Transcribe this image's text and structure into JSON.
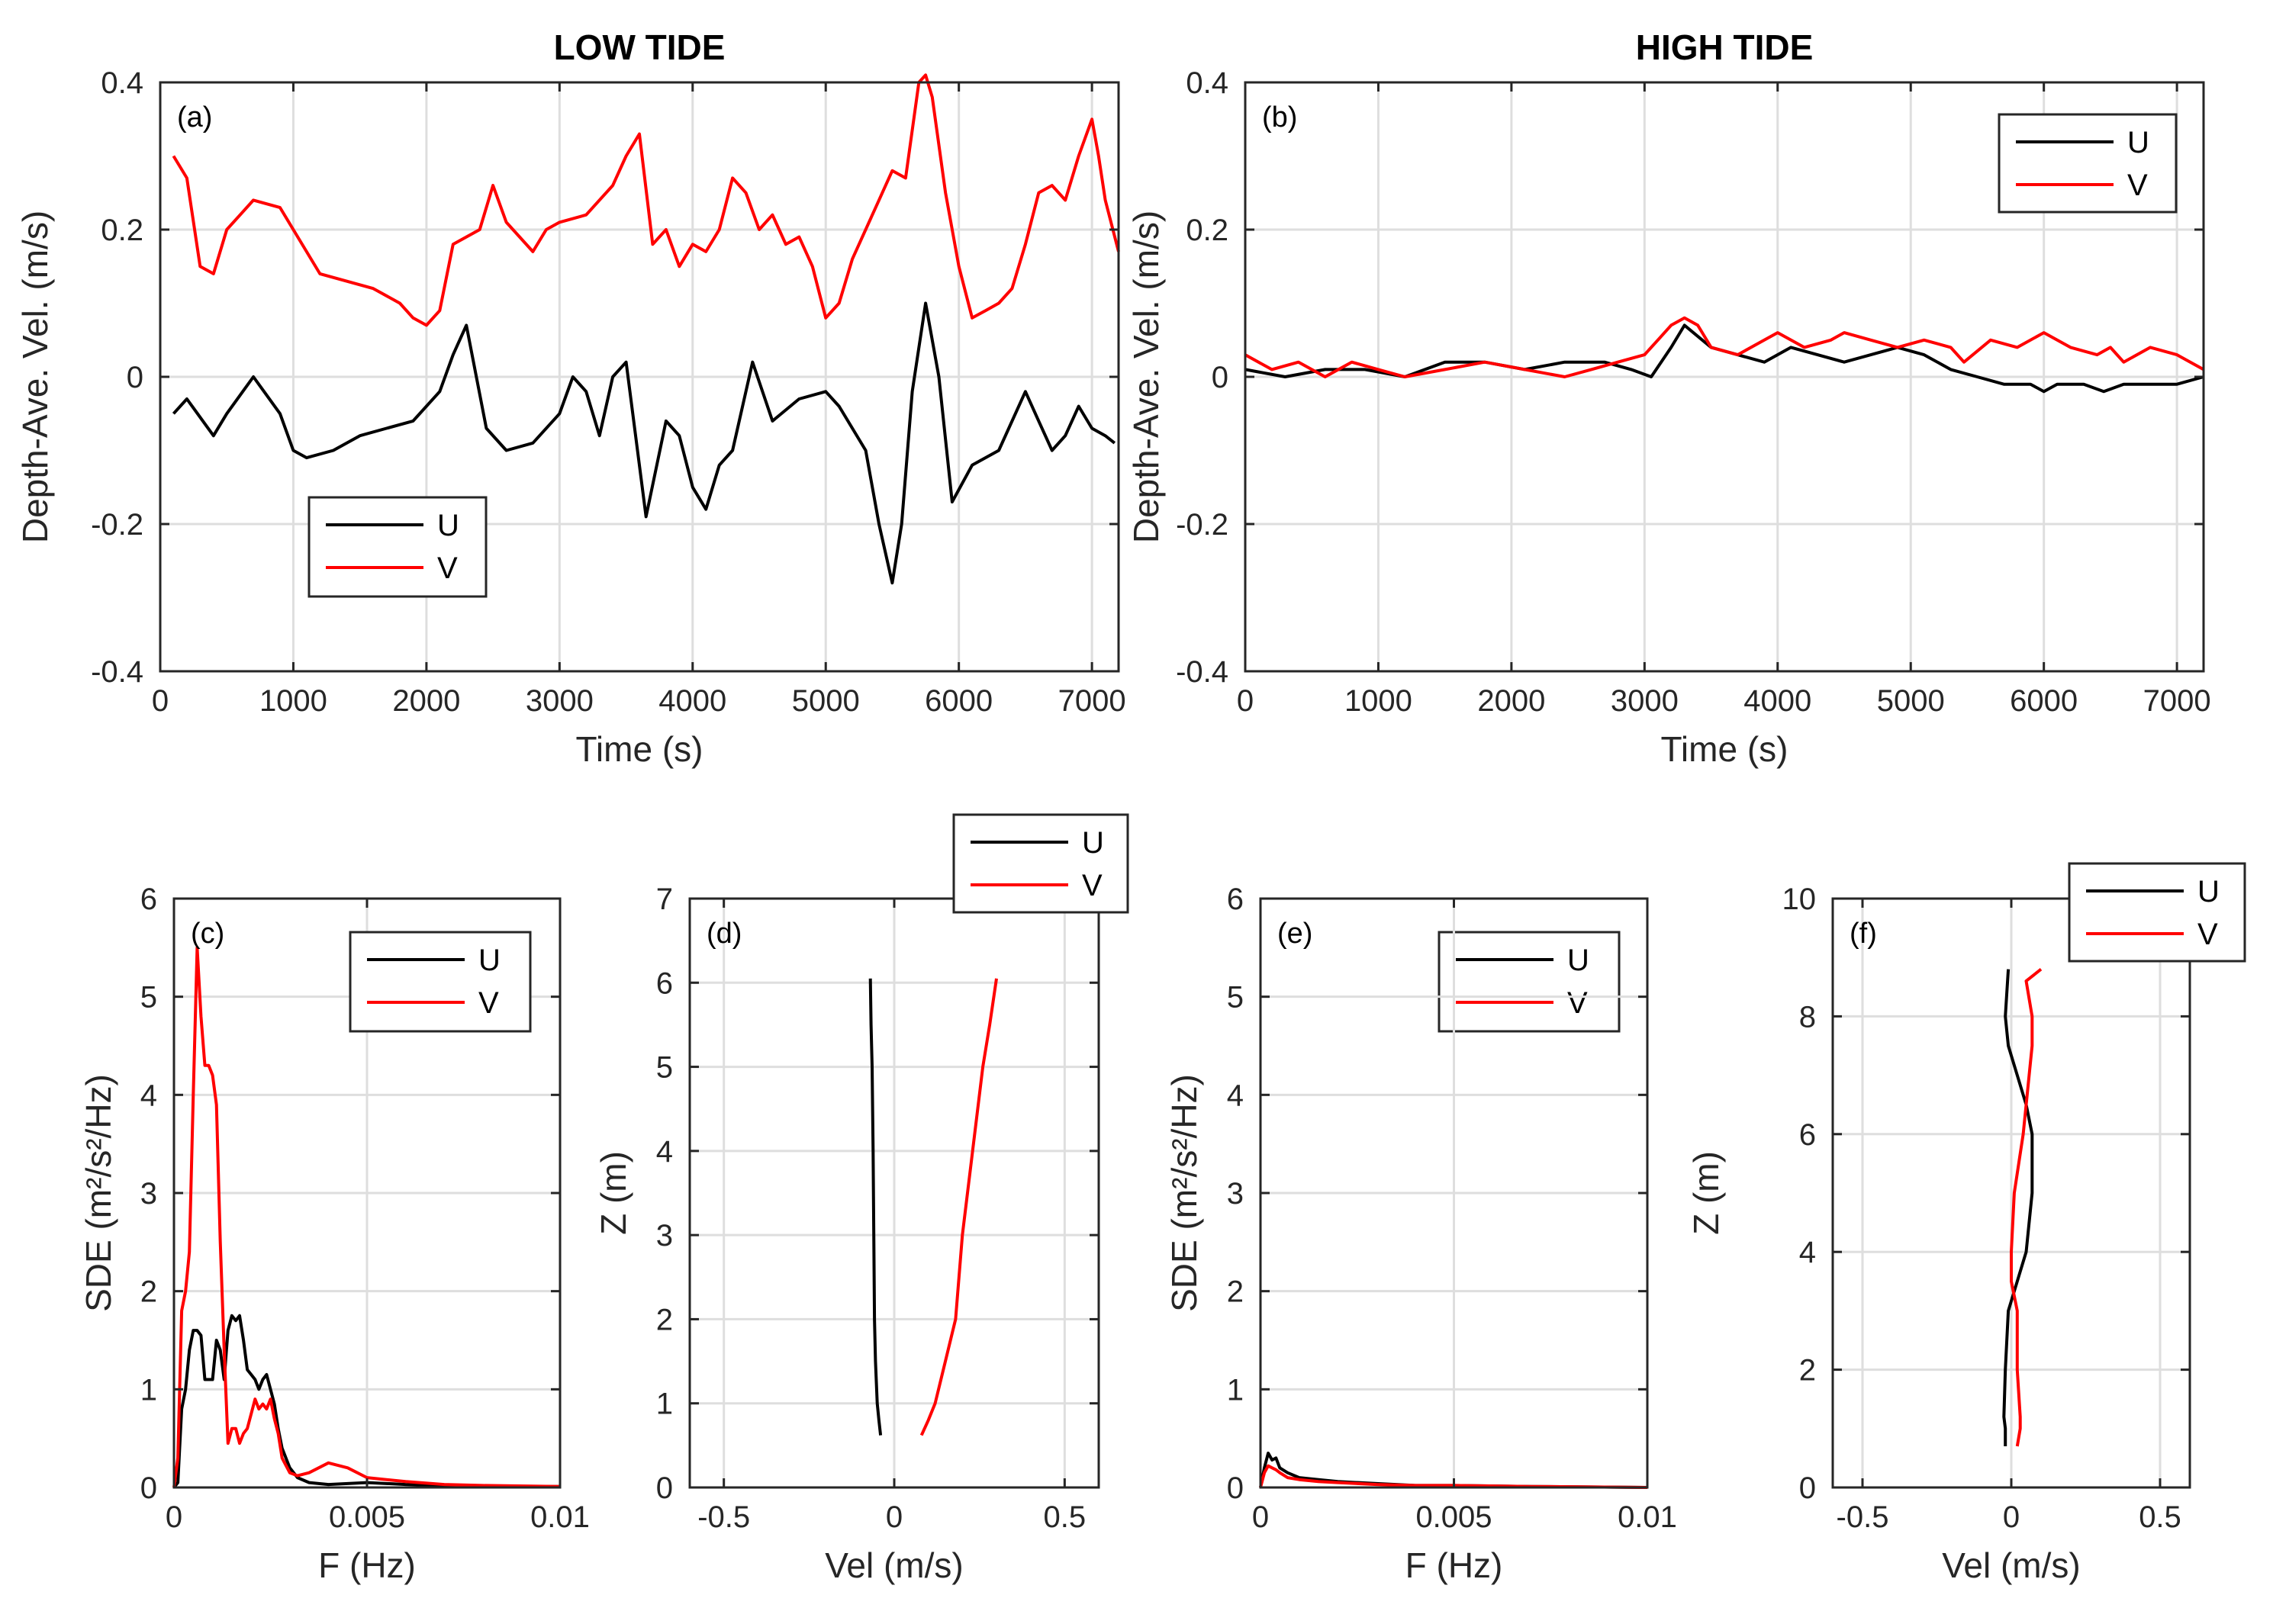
{
  "colors": {
    "U": "#000000",
    "V": "#ff0000",
    "grid": "#dedede",
    "axis": "#262626"
  },
  "chart_data": [
    {
      "type": "line",
      "panel_label": "(a)",
      "title": "LOW TIDE",
      "xlabel": "Time (s)",
      "ylabel": "Depth-Ave. Vel. (m/s)",
      "xlim": [
        0,
        7200
      ],
      "ylim": [
        -0.4,
        0.4
      ],
      "xticks": [
        0,
        1000,
        2000,
        3000,
        4000,
        5000,
        6000,
        7000
      ],
      "xticklabels": [
        "0",
        "1000",
        "2000",
        "3000",
        "4000",
        "5000",
        "6000",
        "7000"
      ],
      "yticks": [
        -0.4,
        -0.2,
        0,
        0.2,
        0.4
      ],
      "yticklabels": [
        "-0.4",
        "-0.2",
        "0",
        "0.2",
        "0.4"
      ],
      "legend": {
        "location": "lower-left",
        "entries": [
          "U",
          "V"
        ]
      },
      "series": [
        {
          "name": "U",
          "color": "#000000",
          "x": [
            100,
            200,
            400,
            500,
            700,
            900,
            1000,
            1100,
            1300,
            1500,
            1700,
            1900,
            2100,
            2200,
            2300,
            2450,
            2600,
            2800,
            3000,
            3100,
            3200,
            3300,
            3400,
            3500,
            3650,
            3800,
            3900,
            4000,
            4100,
            4200,
            4300,
            4450,
            4600,
            4800,
            5000,
            5100,
            5300,
            5400,
            5500,
            5570,
            5650,
            5750,
            5850,
            5950,
            6100,
            6300,
            6500,
            6600,
            6700,
            6800,
            6900,
            7000,
            7100,
            7170
          ],
          "y": [
            -0.05,
            -0.03,
            -0.08,
            -0.05,
            0.0,
            -0.05,
            -0.1,
            -0.11,
            -0.1,
            -0.08,
            -0.07,
            -0.06,
            -0.02,
            0.03,
            0.07,
            -0.07,
            -0.1,
            -0.09,
            -0.05,
            0.0,
            -0.02,
            -0.08,
            0.0,
            0.02,
            -0.19,
            -0.06,
            -0.08,
            -0.15,
            -0.18,
            -0.12,
            -0.1,
            0.02,
            -0.06,
            -0.03,
            -0.02,
            -0.04,
            -0.1,
            -0.2,
            -0.28,
            -0.2,
            -0.02,
            0.1,
            0.0,
            -0.17,
            -0.12,
            -0.1,
            -0.02,
            -0.06,
            -0.1,
            -0.08,
            -0.04,
            -0.07,
            -0.08,
            -0.09
          ]
        },
        {
          "name": "V",
          "color": "#ff0000",
          "x": [
            100,
            200,
            300,
            400,
            500,
            600,
            700,
            900,
            1000,
            1200,
            1400,
            1600,
            1800,
            1900,
            2000,
            2100,
            2200,
            2400,
            2500,
            2600,
            2700,
            2800,
            2900,
            3000,
            3200,
            3400,
            3500,
            3600,
            3700,
            3800,
            3900,
            4000,
            4100,
            4200,
            4300,
            4400,
            4500,
            4600,
            4700,
            4800,
            4900,
            5000,
            5100,
            5200,
            5400,
            5500,
            5600,
            5700,
            5750,
            5800,
            5900,
            6000,
            6100,
            6200,
            6300,
            6400,
            6500,
            6600,
            6700,
            6800,
            6900,
            7000,
            7050,
            7100,
            7200
          ],
          "y": [
            0.3,
            0.27,
            0.15,
            0.14,
            0.2,
            0.22,
            0.24,
            0.23,
            0.2,
            0.14,
            0.13,
            0.12,
            0.1,
            0.08,
            0.07,
            0.09,
            0.18,
            0.2,
            0.26,
            0.21,
            0.19,
            0.17,
            0.2,
            0.21,
            0.22,
            0.26,
            0.3,
            0.33,
            0.18,
            0.2,
            0.15,
            0.18,
            0.17,
            0.2,
            0.27,
            0.25,
            0.2,
            0.22,
            0.18,
            0.19,
            0.15,
            0.08,
            0.1,
            0.16,
            0.24,
            0.28,
            0.27,
            0.4,
            0.41,
            0.38,
            0.25,
            0.15,
            0.08,
            0.09,
            0.1,
            0.12,
            0.18,
            0.25,
            0.26,
            0.24,
            0.3,
            0.35,
            0.3,
            0.24,
            0.17
          ]
        }
      ]
    },
    {
      "type": "line",
      "panel_label": "(b)",
      "title": "HIGH TIDE",
      "xlabel": "Time (s)",
      "ylabel": "Depth-Ave. Vel. (m/s)",
      "xlim": [
        0,
        7200
      ],
      "ylim": [
        -0.4,
        0.4
      ],
      "xticks": [
        0,
        1000,
        2000,
        3000,
        4000,
        5000,
        6000,
        7000
      ],
      "xticklabels": [
        "0",
        "1000",
        "2000",
        "3000",
        "4000",
        "5000",
        "6000",
        "7000"
      ],
      "yticks": [
        -0.4,
        -0.2,
        0,
        0.2,
        0.4
      ],
      "yticklabels": [
        "-0.4",
        "-0.2",
        "0",
        "0.2",
        "0.4"
      ],
      "legend": {
        "location": "top-right",
        "entries": [
          "U",
          "V"
        ]
      },
      "series": [
        {
          "name": "U",
          "color": "#000000",
          "x": [
            0,
            300,
            600,
            900,
            1200,
            1500,
            1800,
            2100,
            2400,
            2700,
            2900,
            3050,
            3200,
            3300,
            3500,
            3700,
            3900,
            4100,
            4300,
            4500,
            4700,
            4900,
            5100,
            5300,
            5500,
            5700,
            5900,
            6000,
            6100,
            6300,
            6450,
            6600,
            6800,
            7000,
            7200
          ],
          "y": [
            0.01,
            0.0,
            0.01,
            0.01,
            0.0,
            0.02,
            0.02,
            0.01,
            0.02,
            0.02,
            0.01,
            0.0,
            0.04,
            0.07,
            0.04,
            0.03,
            0.02,
            0.04,
            0.03,
            0.02,
            0.03,
            0.04,
            0.03,
            0.01,
            0.0,
            -0.01,
            -0.01,
            -0.02,
            -0.01,
            -0.01,
            -0.02,
            -0.01,
            -0.01,
            -0.01,
            0.0
          ]
        },
        {
          "name": "V",
          "color": "#ff0000",
          "x": [
            0,
            200,
            400,
            600,
            800,
            1000,
            1200,
            1500,
            1800,
            2100,
            2400,
            2600,
            2800,
            3000,
            3100,
            3200,
            3300,
            3400,
            3500,
            3700,
            3900,
            4000,
            4200,
            4400,
            4500,
            4700,
            4900,
            5100,
            5300,
            5400,
            5600,
            5800,
            6000,
            6200,
            6400,
            6500,
            6600,
            6800,
            7000,
            7200
          ],
          "y": [
            0.03,
            0.01,
            0.02,
            0.0,
            0.02,
            0.01,
            0.0,
            0.01,
            0.02,
            0.01,
            0.0,
            0.01,
            0.02,
            0.03,
            0.05,
            0.07,
            0.08,
            0.07,
            0.04,
            0.03,
            0.05,
            0.06,
            0.04,
            0.05,
            0.06,
            0.05,
            0.04,
            0.05,
            0.04,
            0.02,
            0.05,
            0.04,
            0.06,
            0.04,
            0.03,
            0.04,
            0.02,
            0.04,
            0.03,
            0.01
          ]
        }
      ]
    },
    {
      "type": "line",
      "panel_label": "(c)",
      "xlabel": "F (Hz)",
      "ylabel": "SDE (m²/s²/Hz)",
      "xlim": [
        0,
        0.01
      ],
      "ylim": [
        0,
        6
      ],
      "xticks": [
        0,
        0.005,
        0.01
      ],
      "xticklabels": [
        "0",
        "0.005",
        "0.01"
      ],
      "yticks": [
        0,
        1,
        2,
        3,
        4,
        5,
        6
      ],
      "yticklabels": [
        "0",
        "1",
        "2",
        "3",
        "4",
        "5",
        "6"
      ],
      "legend": {
        "location": "top-right",
        "entries": [
          "U",
          "V"
        ]
      },
      "series": [
        {
          "name": "U",
          "color": "#000000",
          "x": [
            0,
            0.0001,
            0.0002,
            0.0003,
            0.0004,
            0.0005,
            0.0006,
            0.0007,
            0.0008,
            0.0009,
            0.001,
            0.0011,
            0.0012,
            0.0013,
            0.0014,
            0.0015,
            0.0016,
            0.0017,
            0.0018,
            0.0019,
            0.002,
            0.0021,
            0.0022,
            0.0023,
            0.0024,
            0.0025,
            0.0026,
            0.0027,
            0.0028,
            0.003,
            0.0032,
            0.0035,
            0.004,
            0.0045,
            0.005,
            0.006,
            0.007,
            0.008,
            0.01
          ],
          "y": [
            0,
            0.05,
            0.8,
            1.0,
            1.4,
            1.6,
            1.6,
            1.55,
            1.1,
            1.1,
            1.1,
            1.5,
            1.4,
            1.1,
            1.6,
            1.75,
            1.7,
            1.75,
            1.5,
            1.2,
            1.15,
            1.1,
            1.0,
            1.1,
            1.15,
            1.0,
            0.85,
            0.6,
            0.4,
            0.2,
            0.1,
            0.05,
            0.03,
            0.04,
            0.05,
            0.03,
            0.02,
            0.01,
            0.01
          ]
        },
        {
          "name": "V",
          "color": "#ff0000",
          "x": [
            0,
            0.0001,
            0.0002,
            0.0003,
            0.0004,
            0.0005,
            0.0006,
            0.0007,
            0.0008,
            0.0009,
            0.001,
            0.0011,
            0.0012,
            0.0013,
            0.0014,
            0.0015,
            0.0016,
            0.0017,
            0.0018,
            0.0019,
            0.002,
            0.0021,
            0.0022,
            0.0023,
            0.0024,
            0.0025,
            0.0026,
            0.0027,
            0.0028,
            0.003,
            0.0032,
            0.0035,
            0.004,
            0.0045,
            0.005,
            0.006,
            0.007,
            0.008,
            0.01
          ],
          "y": [
            0,
            0.3,
            1.8,
            2.0,
            2.4,
            4.0,
            5.5,
            4.8,
            4.3,
            4.3,
            4.2,
            3.9,
            2.5,
            1.4,
            0.45,
            0.6,
            0.6,
            0.45,
            0.55,
            0.6,
            0.75,
            0.9,
            0.8,
            0.85,
            0.8,
            0.9,
            0.7,
            0.55,
            0.3,
            0.15,
            0.12,
            0.15,
            0.25,
            0.2,
            0.1,
            0.06,
            0.03,
            0.02,
            0.01
          ]
        }
      ]
    },
    {
      "type": "line",
      "panel_label": "(d)",
      "xlabel": "Vel (m/s)",
      "ylabel": "Z (m)",
      "xlim": [
        -0.6,
        0.6
      ],
      "ylim": [
        0,
        7
      ],
      "xticks": [
        -0.5,
        0,
        0.5
      ],
      "xticklabels": [
        "-0.5",
        "0",
        "0.5"
      ],
      "yticks": [
        0,
        1,
        2,
        3,
        4,
        5,
        6,
        7
      ],
      "yticklabels": [
        "0",
        "1",
        "2",
        "3",
        "4",
        "5",
        "6",
        "7"
      ],
      "legend": {
        "location": "above-top-right",
        "entries": [
          "U",
          "V"
        ]
      },
      "series": [
        {
          "name": "U",
          "color": "#000000",
          "x": [
            -0.07,
            -0.068,
            -0.065,
            -0.062,
            -0.06,
            -0.058,
            -0.055,
            -0.05,
            -0.045,
            -0.04
          ],
          "y": [
            6.05,
            5.5,
            5.0,
            4.0,
            3.0,
            2.0,
            1.5,
            1.0,
            0.8,
            0.62
          ]
        },
        {
          "name": "V",
          "color": "#ff0000",
          "x": [
            0.3,
            0.28,
            0.26,
            0.23,
            0.2,
            0.18,
            0.15,
            0.12,
            0.1,
            0.08
          ],
          "y": [
            6.05,
            5.5,
            5.0,
            4.0,
            3.0,
            2.0,
            1.5,
            1.0,
            0.8,
            0.62
          ]
        }
      ]
    },
    {
      "type": "line",
      "panel_label": "(e)",
      "xlabel": "F (Hz)",
      "ylabel": "SDE (m²/s²/Hz)",
      "xlim": [
        0,
        0.01
      ],
      "ylim": [
        0,
        6
      ],
      "xticks": [
        0,
        0.005,
        0.01
      ],
      "xticklabels": [
        "0",
        "0.005",
        "0.01"
      ],
      "yticks": [
        0,
        1,
        2,
        3,
        4,
        5,
        6
      ],
      "yticklabels": [
        "0",
        "1",
        "2",
        "3",
        "4",
        "5",
        "6"
      ],
      "legend": {
        "location": "top-right",
        "entries": [
          "U",
          "V"
        ]
      },
      "series": [
        {
          "name": "U",
          "color": "#000000",
          "x": [
            0,
            0.0001,
            0.0002,
            0.0003,
            0.0004,
            0.0005,
            0.0007,
            0.001,
            0.0015,
            0.002,
            0.003,
            0.004,
            0.005,
            0.007,
            0.01
          ],
          "y": [
            0,
            0.2,
            0.35,
            0.28,
            0.3,
            0.2,
            0.15,
            0.1,
            0.08,
            0.06,
            0.04,
            0.02,
            0.02,
            0.01,
            0.0
          ]
        },
        {
          "name": "V",
          "color": "#ff0000",
          "x": [
            0,
            0.0001,
            0.0002,
            0.0003,
            0.0004,
            0.0005,
            0.0007,
            0.001,
            0.0015,
            0.002,
            0.003,
            0.004,
            0.005,
            0.007,
            0.01
          ],
          "y": [
            0,
            0.15,
            0.22,
            0.2,
            0.18,
            0.15,
            0.1,
            0.08,
            0.06,
            0.05,
            0.03,
            0.02,
            0.02,
            0.01,
            0.0
          ]
        }
      ]
    },
    {
      "type": "line",
      "panel_label": "(f)",
      "xlabel": "Vel (m/s)",
      "ylabel": "Z (m)",
      "xlim": [
        -0.6,
        0.6
      ],
      "ylim": [
        0,
        10
      ],
      "xticks": [
        -0.5,
        0,
        0.5
      ],
      "xticklabels": [
        "-0.5",
        "0",
        "0.5"
      ],
      "yticks": [
        0,
        2,
        4,
        6,
        8,
        10
      ],
      "yticklabels": [
        "0",
        "2",
        "4",
        "6",
        "8",
        "10"
      ],
      "legend": {
        "location": "above-top-right",
        "entries": [
          "U",
          "V"
        ]
      },
      "series": [
        {
          "name": "U",
          "color": "#000000",
          "x": [
            -0.01,
            -0.02,
            -0.01,
            0.02,
            0.05,
            0.07,
            0.07,
            0.05,
            0.02,
            -0.01,
            -0.02,
            -0.025,
            -0.02,
            -0.02
          ],
          "y": [
            8.8,
            8.0,
            7.5,
            7.0,
            6.5,
            6.0,
            5.0,
            4.0,
            3.5,
            3.0,
            2.0,
            1.2,
            1.0,
            0.7
          ]
        },
        {
          "name": "V",
          "color": "#ff0000",
          "x": [
            0.1,
            0.05,
            0.07,
            0.07,
            0.06,
            0.04,
            0.01,
            0.0,
            0.0,
            0.02,
            0.02,
            0.03,
            0.03,
            0.02
          ],
          "y": [
            8.8,
            8.6,
            8.0,
            7.5,
            7.0,
            6.0,
            5.0,
            4.0,
            3.5,
            3.0,
            2.0,
            1.2,
            1.0,
            0.7
          ]
        }
      ]
    }
  ]
}
